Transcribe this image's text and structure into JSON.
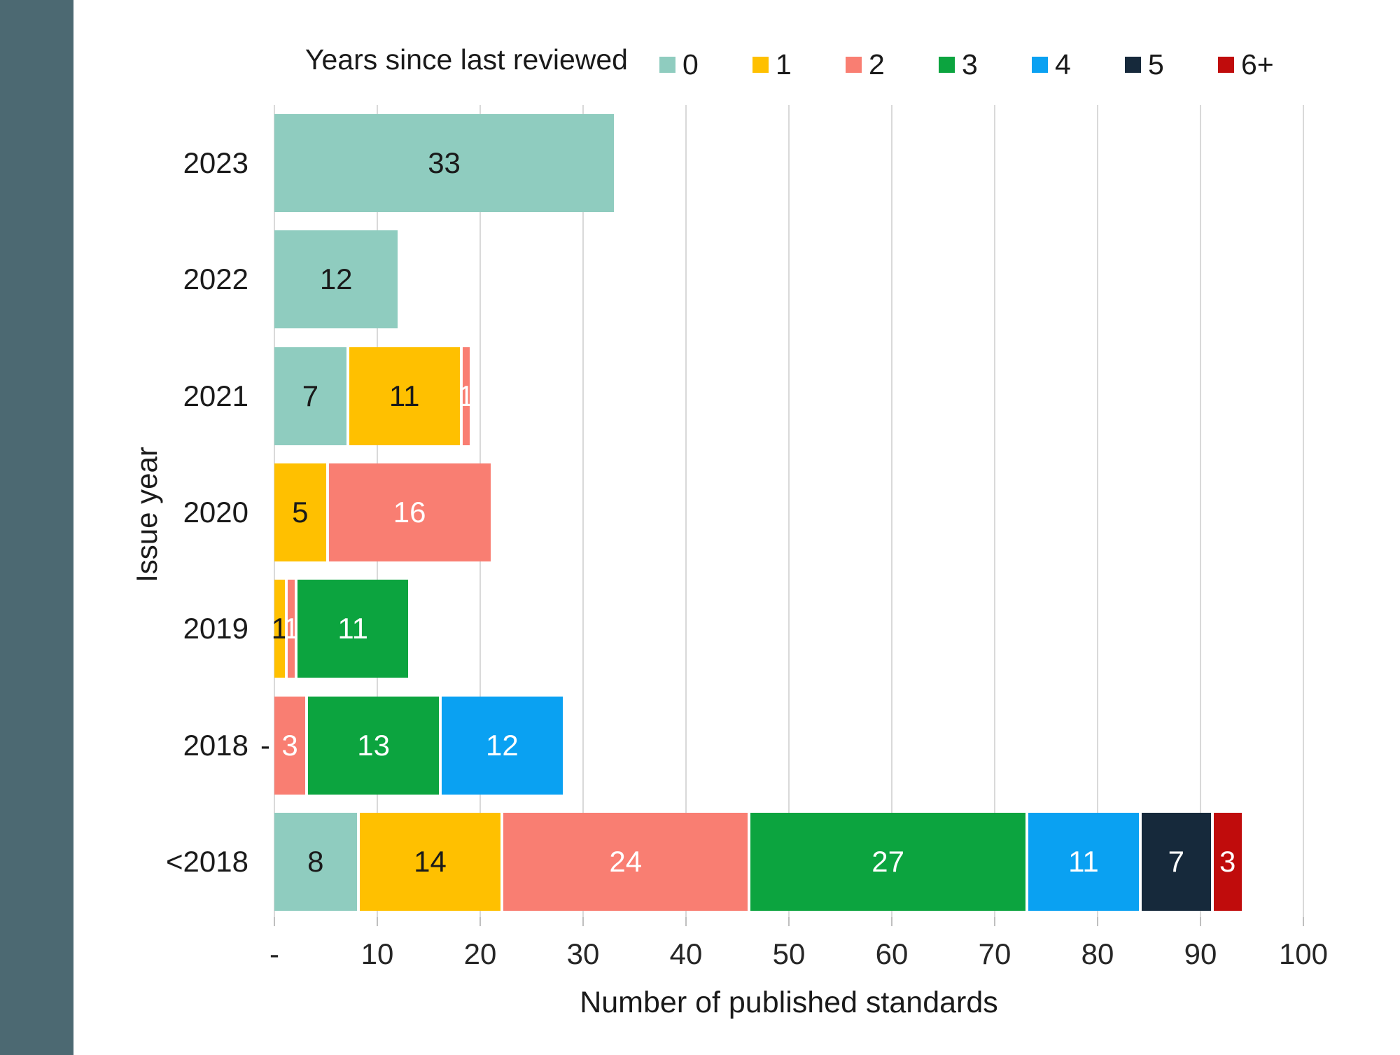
{
  "page": {
    "background_color": "#FFFFFF",
    "accent_bar_color": "#4C6972"
  },
  "colors": {
    "gridline": "#D9D9D9",
    "axis_tick": "#BFBFBF",
    "axis_text": "#262626"
  },
  "chart_data": {
    "type": "bar",
    "variant": "horizontal-stacked",
    "legend_title": "Years since last reviewed",
    "legend_position": "top",
    "xlabel": "Number of published standards",
    "ylabel": "Issue year",
    "xlim": [
      0,
      100
    ],
    "x_tick_labels": [
      "-",
      "10",
      "20",
      "30",
      "40",
      "50",
      "60",
      "70",
      "80",
      "90",
      "100"
    ],
    "grid": "vertical",
    "categories": [
      "2023",
      "2022",
      "2021",
      "2020",
      "2019",
      "2018",
      "<2018"
    ],
    "series": [
      {
        "name": "0",
        "color": "#8FCCBF",
        "label_color": "#1A1A1A",
        "values": [
          33,
          12,
          7,
          0,
          0,
          0,
          8
        ]
      },
      {
        "name": "1",
        "color": "#FFC000",
        "label_color": "#1A1A1A",
        "values": [
          0,
          0,
          11,
          5,
          1,
          0,
          14
        ]
      },
      {
        "name": "2",
        "color": "#F97E72",
        "label_color": "#FFFFFF",
        "values": [
          0,
          0,
          1,
          16,
          1,
          3,
          24
        ]
      },
      {
        "name": "3",
        "color": "#0CA43F",
        "label_color": "#FFFFFF",
        "values": [
          0,
          0,
          0,
          0,
          11,
          13,
          27
        ]
      },
      {
        "name": "4",
        "color": "#0AA1F2",
        "label_color": "#FFFFFF",
        "values": [
          0,
          0,
          0,
          0,
          0,
          12,
          11
        ]
      },
      {
        "name": "5",
        "color": "#16293B",
        "label_color": "#FFFFFF",
        "values": [
          0,
          0,
          0,
          0,
          0,
          0,
          7
        ]
      },
      {
        "name": "6+",
        "color": "#C00C0C",
        "label_color": "#FFFFFF",
        "values": [
          0,
          0,
          0,
          0,
          0,
          0,
          3
        ]
      }
    ],
    "zero_value_labels": [
      {
        "category": "2018",
        "text": "-"
      }
    ]
  }
}
